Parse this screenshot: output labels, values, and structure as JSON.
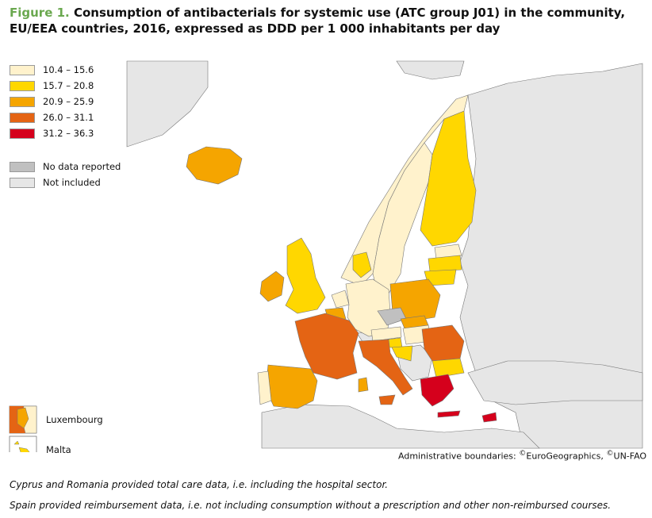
{
  "figure": {
    "label": "Figure 1.",
    "title": "Consumption of antibacterials for systemic use (ATC group J01) in the community, EU/EEA countries, 2016, expressed as DDD per 1 000 inhabitants per day"
  },
  "legend": {
    "classes": [
      {
        "label": "10.4 – 15.6",
        "color": "#fff2cc"
      },
      {
        "label": "15.7 – 20.8",
        "color": "#ffd700"
      },
      {
        "label": "20.9 – 25.9",
        "color": "#f5a500"
      },
      {
        "label": "26.0 – 31.1",
        "color": "#e46414"
      },
      {
        "label": "31.2 – 36.3",
        "color": "#d5001c"
      }
    ],
    "special": [
      {
        "label": "No data reported",
        "color": "#c0c0c0"
      },
      {
        "label": "Not included",
        "color": "#e6e6e6"
      }
    ]
  },
  "insets": [
    {
      "label": "Luxembourg"
    },
    {
      "label": "Malta"
    }
  ],
  "map": {
    "sea_color": "#ffffff",
    "non_included_color": "#e6e6e6",
    "border_color": "#777777"
  },
  "credits": {
    "prefix": "Administrative boundaries: ",
    "source1": "EuroGeographics, ",
    "source2": "UN-FAO"
  },
  "notes": [
    "Cyprus and Romania provided total care data, i.e. including the hospital sector.",
    "Spain provided reimbursement data, i.e. not including consumption without a prescription and other non-reimbursed courses."
  ]
}
